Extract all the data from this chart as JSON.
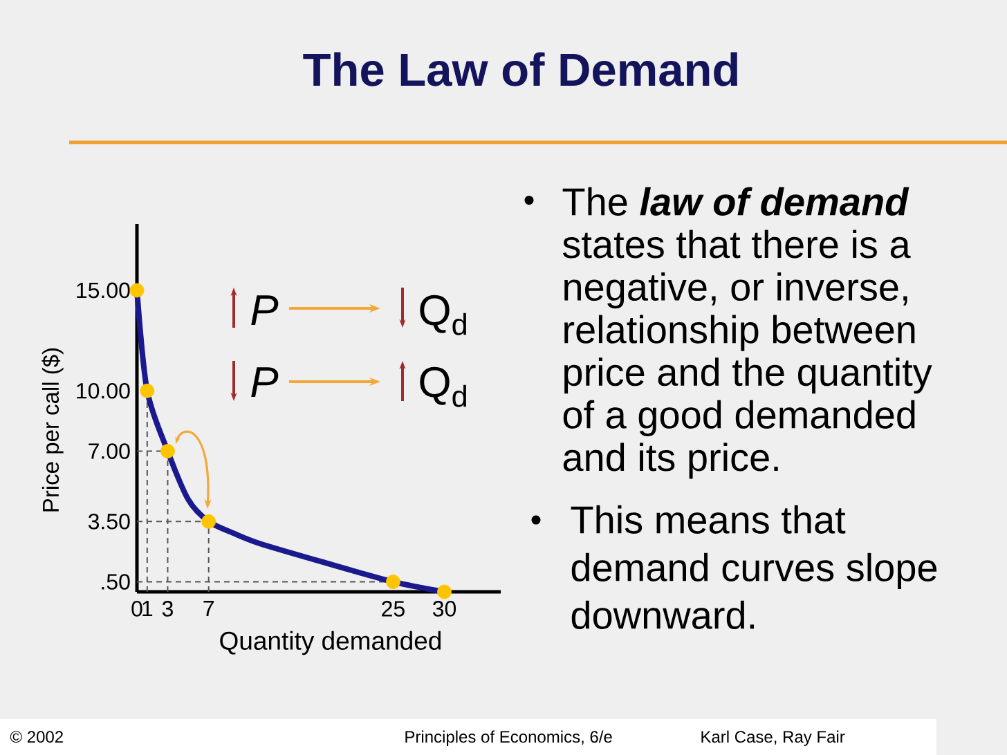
{
  "chart_data": {
    "type": "line",
    "title": "The Law of Demand",
    "xlabel": "Quantity demanded",
    "ylabel": "Price per call ($)",
    "x": [
      0,
      1,
      3,
      7,
      25,
      30
    ],
    "series": [
      {
        "color": "#1a1a8e",
        "x": [
          0,
          1,
          3,
          5,
          7,
          9.5,
          12,
          18,
          25,
          30
        ],
        "values": [
          15,
          10,
          7,
          4.6,
          3.5,
          2.9,
          2.4,
          1.5,
          0.5,
          0
        ]
      },
      {
        "type": "scatter",
        "color": "#fdc500",
        "marker": "circle",
        "values": [
          15,
          10,
          7,
          3.5,
          0.5,
          0
        ]
      }
    ],
    "xlim": [
      0,
      35.5
    ],
    "ylim": [
      0,
      18.3
    ],
    "xticks": [
      0,
      1,
      3,
      7,
      25,
      30
    ],
    "yticks": [
      {
        "value": 0.5,
        "label": ".50"
      },
      {
        "value": 3.5,
        "label": "3.50"
      },
      {
        "value": 7,
        "label": "7.00"
      },
      {
        "value": 10,
        "label": "10.00"
      },
      {
        "value": 15,
        "label": "15.00"
      }
    ],
    "ref_lines": [
      {
        "axis": "x",
        "value": 1,
        "color": "#555555",
        "line_style": "dashed"
      },
      {
        "axis": "x",
        "value": 3,
        "color": "#555555",
        "line_style": "dashed"
      },
      {
        "axis": "x",
        "value": 7,
        "color": "#555555",
        "line_style": "dashed"
      },
      {
        "axis": "y",
        "value": 7,
        "color": "#555555",
        "line_style": "dashed"
      },
      {
        "axis": "y",
        "value": 3.5,
        "color": "#555555",
        "line_style": "dashed"
      },
      {
        "axis": "y",
        "value": 0.5,
        "color": "#555555",
        "line_style": "dashed"
      }
    ],
    "annotations": [
      "P",
      "Q$_{d}$",
      "P",
      "Q$_{d}$",
      "•",
      "The **law of demand** states that there is a negative, or inverse, relationship between price and the quantity of a good demanded and its price.",
      "•",
      "This means that demand curves slope downward.",
      "© 2002",
      "Principles of Economics, 6/e",
      "Karl Case, Ray Fair"
    ]
  }
}
